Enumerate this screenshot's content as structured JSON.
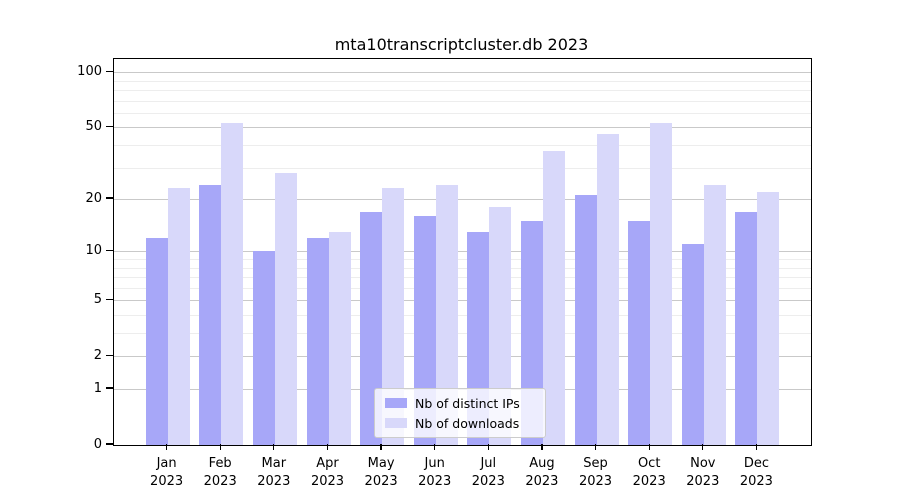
{
  "chart_data": {
    "type": "bar",
    "title": "mta10transcriptcluster.db 2023",
    "categories": [
      "Jan",
      "Feb",
      "Mar",
      "Apr",
      "May",
      "Jun",
      "Jul",
      "Aug",
      "Sep",
      "Oct",
      "Nov",
      "Dec"
    ],
    "year_label": "2023",
    "series": [
      {
        "name": "Nb of distinct IPs",
        "color": "#a7a7f8",
        "values": [
          12,
          24,
          10,
          12,
          17,
          16,
          13,
          15,
          21,
          15,
          11,
          17
        ]
      },
      {
        "name": "Nb of downloads",
        "color": "#d8d8fa",
        "values": [
          23,
          53,
          28,
          13,
          23,
          24,
          18,
          37,
          46,
          53,
          24,
          22
        ]
      }
    ],
    "xlabel": "",
    "ylabel": "",
    "yticks": [
      100,
      50,
      20,
      10,
      5,
      2,
      1,
      0
    ],
    "y_minor_gridlines": [
      90,
      80,
      70,
      60,
      40,
      30,
      9,
      8,
      7,
      6,
      4,
      3
    ],
    "scale": "log1p",
    "ylim": [
      0,
      118
    ],
    "grid": true,
    "legend_position": "bottom-center",
    "axis_color": "#000000",
    "grid_major_color": "#c9c9c9",
    "grid_minor_color": "#ededed"
  }
}
